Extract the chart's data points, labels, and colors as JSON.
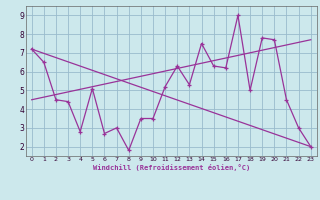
{
  "xlabel": "Windchill (Refroidissement éolien,°C)",
  "xlim": [
    -0.5,
    23.5
  ],
  "ylim": [
    1.5,
    9.5
  ],
  "xticks": [
    0,
    1,
    2,
    3,
    4,
    5,
    6,
    7,
    8,
    9,
    10,
    11,
    12,
    13,
    14,
    15,
    16,
    17,
    18,
    19,
    20,
    21,
    22,
    23
  ],
  "yticks": [
    2,
    3,
    4,
    5,
    6,
    7,
    8,
    9
  ],
  "bg_color": "#cce8ec",
  "line_color": "#993399",
  "grid_color": "#99bbcc",
  "line1_x": [
    0,
    1,
    2,
    3,
    4,
    5,
    6,
    7,
    8,
    9,
    10,
    11,
    12,
    13,
    14,
    15,
    16,
    17,
    18,
    19,
    20,
    21,
    22,
    23
  ],
  "line1_y": [
    7.2,
    6.5,
    4.5,
    4.4,
    2.8,
    5.1,
    2.7,
    3.0,
    1.8,
    3.5,
    3.5,
    5.2,
    6.3,
    5.3,
    7.5,
    6.3,
    6.2,
    9.0,
    5.0,
    7.8,
    7.7,
    4.5,
    3.0,
    2.0
  ],
  "line2_x": [
    0,
    23
  ],
  "line2_y": [
    7.2,
    2.0
  ],
  "line3_x": [
    0,
    23
  ],
  "line3_y": [
    4.5,
    7.7
  ]
}
